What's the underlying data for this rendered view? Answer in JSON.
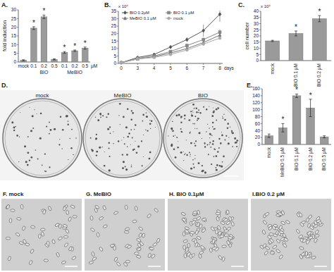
{
  "chart_data": [
    {
      "panel": "A.",
      "type": "bar",
      "y_label": "fold induction",
      "categories": [
        "mock",
        "0.1",
        "0.2",
        "0.5",
        "0.1",
        "0.2",
        "0.5"
      ],
      "category_groups": [
        null,
        "BIO",
        "BIO",
        "BIO",
        "MeBIO",
        "MeBIO",
        "MeBIO"
      ],
      "unit_label": "μM",
      "values": [
        1,
        19.5,
        26,
        1.5,
        5.5,
        6.5,
        8
      ],
      "errors": [
        0.3,
        0.8,
        1,
        0.3,
        0.5,
        0.4,
        0.6
      ],
      "significance": [
        null,
        "*",
        "*",
        null,
        "*",
        "*",
        "*"
      ],
      "color": "#9a9a9a",
      "ylim": [
        0,
        30
      ],
      "yticks": [
        0,
        5,
        10,
        15,
        20,
        25,
        30
      ]
    },
    {
      "panel": "B.",
      "type": "line",
      "scale_label": "x 10⁴",
      "x_label": "days",
      "categories": [
        "0",
        "3",
        "4",
        "5",
        "6",
        "7",
        "8"
      ],
      "series": [
        {
          "name": "BIO 0.2μM",
          "color": "#555555",
          "marker": "diamond",
          "values": [
            0.5,
            4,
            6,
            11,
            16,
            22,
            33
          ],
          "errors": [
            0.1,
            0.5,
            0.6,
            1,
            1.5,
            4,
            5
          ]
        },
        {
          "name": "BIO 0.1 μM",
          "color": "#888888",
          "marker": "square",
          "values": [
            0.5,
            3.5,
            5,
            8,
            12,
            16,
            21
          ],
          "errors": [
            0.1,
            0.4,
            0.5,
            0.8,
            1,
            1.5,
            2
          ]
        },
        {
          "name": "MeBIO 0.1 μM",
          "color": "#777777",
          "marker": "triangle",
          "values": [
            0.5,
            3,
            4.5,
            7,
            10,
            14,
            19
          ],
          "errors": [
            0.1,
            0.3,
            0.4,
            0.6,
            0.8,
            1.2,
            1.5
          ]
        },
        {
          "name": "mock",
          "color": "#aaaaaa",
          "marker": "circle",
          "values": [
            0.5,
            3,
            4,
            6,
            9,
            13,
            17
          ],
          "errors": [
            0.1,
            0.3,
            0.3,
            0.5,
            0.7,
            1,
            1.2
          ]
        }
      ],
      "ylim": [
        0,
        35
      ],
      "yticks": [
        0,
        5,
        10,
        15,
        20,
        25,
        30,
        35
      ],
      "legend": "top"
    },
    {
      "panel": "C.",
      "type": "bar",
      "y_label": "cell number",
      "scale_label": "x 10⁴",
      "categories": [
        "mock",
        "BIO 0.1 μM",
        "BIO 0.2 μM"
      ],
      "values": [
        16,
        22,
        34
      ],
      "errors": [
        0.5,
        2,
        2.5
      ],
      "significance": [
        null,
        "*",
        "*"
      ],
      "color": "#9a9a9a",
      "ylim": [
        0,
        40
      ],
      "yticks": [
        0,
        5,
        10,
        15,
        20,
        25,
        30,
        35,
        40
      ]
    },
    {
      "panel": "E.",
      "type": "bar",
      "categories": [
        "mock",
        "MeBIO 0.5 μM",
        "BIO 0.1 μM",
        "BIO 0.2 μM",
        "BIO 0.5 μM"
      ],
      "values": [
        25,
        48,
        140,
        105,
        22
      ],
      "errors": [
        5,
        12,
        5,
        25,
        3
      ],
      "significance": [
        null,
        "*",
        "*",
        "*",
        null
      ],
      "color": "#9a9a9a",
      "ylim": [
        0,
        160
      ],
      "yticks": [
        0,
        20,
        40,
        60,
        80,
        100,
        120,
        140,
        160
      ]
    }
  ],
  "images": {
    "dishes": {
      "panel": "D.",
      "labels": [
        "mock",
        "MeBIO",
        "BIO"
      ]
    },
    "micrographs": [
      {
        "caption": "F. mock"
      },
      {
        "caption": "G. MeBIO"
      },
      {
        "caption": "H. BIO 0.1μM"
      },
      {
        "caption": "I.BIO 0.2 μM"
      }
    ]
  }
}
